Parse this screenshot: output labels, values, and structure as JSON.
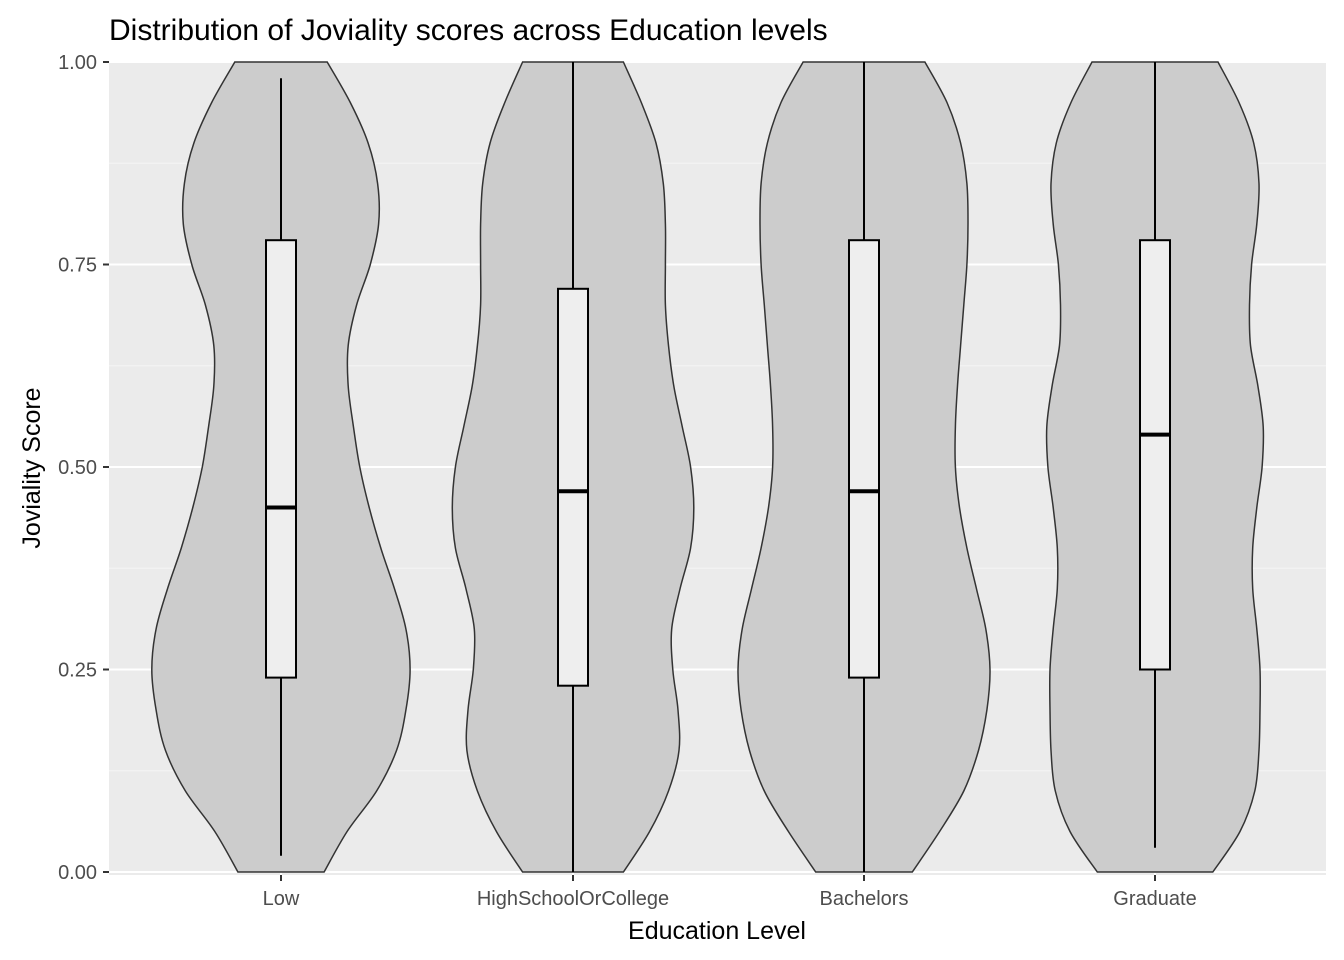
{
  "chart_data": {
    "type": "violin",
    "title": "Distribution of Joviality scores across Education levels",
    "xlabel": "Education Level",
    "ylabel": "Joviality Score",
    "ylim": [
      0,
      1
    ],
    "y_ticks": [
      "0.00",
      "0.25",
      "0.50",
      "0.75",
      "1.00"
    ],
    "categories": [
      "Low",
      "HighSchoolOrCollege",
      "Bachelors",
      "Graduate"
    ],
    "grid": true,
    "legend": "none",
    "colors": {
      "panel_background": "#ebebeb",
      "grid_major": "#ffffff",
      "grid_minor": "#f5f5f5",
      "violin_fill": "#cccccc",
      "violin_outline": "#333333",
      "box_fill": "#eeeeee",
      "box_outline": "#000000"
    },
    "box": [
      {
        "category": "Low",
        "min": 0.02,
        "q1": 0.24,
        "median": 0.45,
        "q3": 0.78,
        "max": 0.98
      },
      {
        "category": "HighSchoolOrCollege",
        "min": 0.0,
        "q1": 0.23,
        "median": 0.47,
        "q3": 0.72,
        "max": 1.0
      },
      {
        "category": "Bachelors",
        "min": 0.0,
        "q1": 0.24,
        "median": 0.47,
        "q3": 0.78,
        "max": 1.0
      },
      {
        "category": "Graduate",
        "min": 0.03,
        "q1": 0.25,
        "median": 0.54,
        "q3": 0.78,
        "max": 1.0
      }
    ],
    "violin_density": {
      "y": [
        0.0,
        0.05,
        0.1,
        0.15,
        0.2,
        0.25,
        0.3,
        0.35,
        0.4,
        0.45,
        0.5,
        0.55,
        0.6,
        0.65,
        0.7,
        0.75,
        0.8,
        0.85,
        0.9,
        0.95,
        1.0
      ],
      "series": [
        {
          "name": "Low",
          "values": [
            0.41,
            0.63,
            0.91,
            1.1,
            1.19,
            1.23,
            1.19,
            1.08,
            0.95,
            0.84,
            0.75,
            0.69,
            0.64,
            0.64,
            0.72,
            0.85,
            0.93,
            0.92,
            0.83,
            0.66,
            0.44
          ]
        },
        {
          "name": "HighSchoolOrCollege",
          "values": [
            0.48,
            0.73,
            0.91,
            1.01,
            1.0,
            0.95,
            0.94,
            1.02,
            1.12,
            1.15,
            1.12,
            1.04,
            0.96,
            0.91,
            0.88,
            0.88,
            0.88,
            0.86,
            0.79,
            0.65,
            0.48
          ]
        },
        {
          "name": "Bachelors",
          "values": [
            0.46,
            0.72,
            0.95,
            1.09,
            1.17,
            1.2,
            1.16,
            1.07,
            0.98,
            0.91,
            0.87,
            0.87,
            0.89,
            0.92,
            0.95,
            0.98,
            0.99,
            0.98,
            0.92,
            0.79,
            0.58
          ]
        },
        {
          "name": "Graduate",
          "values": [
            0.55,
            0.81,
            0.95,
            0.99,
            1.0,
            1.0,
            0.97,
            0.93,
            0.93,
            0.97,
            1.02,
            1.03,
            0.98,
            0.91,
            0.9,
            0.92,
            0.97,
            0.99,
            0.94,
            0.8,
            0.6
          ]
        }
      ]
    }
  }
}
